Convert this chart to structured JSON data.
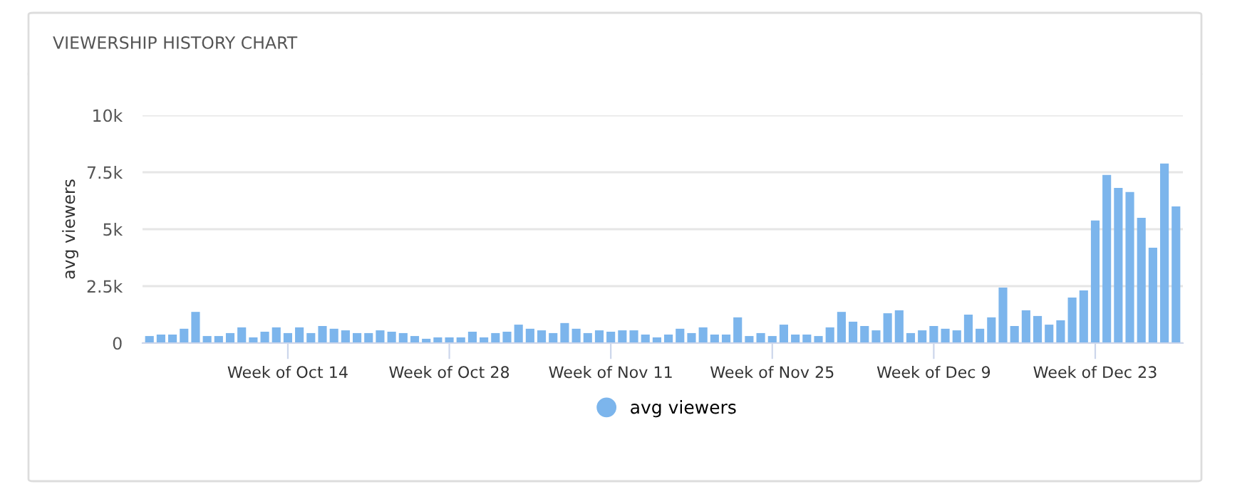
{
  "chart_data": {
    "type": "bar",
    "title": "VIEWERSHIP HISTORY CHART",
    "ylabel": "avg viewers",
    "categories": [
      null,
      null,
      null,
      null,
      null,
      null,
      null,
      null,
      null,
      null,
      null,
      null,
      "Week of Oct 14",
      null,
      null,
      null,
      null,
      null,
      null,
      null,
      null,
      null,
      null,
      null,
      null,
      null,
      "Week of Oct 28",
      null,
      null,
      null,
      null,
      null,
      null,
      null,
      null,
      null,
      null,
      null,
      null,
      null,
      "Week of Nov 11",
      null,
      null,
      null,
      null,
      null,
      null,
      null,
      null,
      null,
      null,
      null,
      null,
      null,
      "Week of Nov 25",
      null,
      null,
      null,
      null,
      null,
      null,
      null,
      null,
      null,
      null,
      null,
      null,
      null,
      "Week of Dec 9",
      null,
      null,
      null,
      null,
      null,
      null,
      null,
      null,
      null,
      null,
      null,
      null,
      null,
      "Week of Dec 23",
      null,
      null,
      null,
      null,
      null,
      null,
      null
    ],
    "series": [
      {
        "name": "avg viewers",
        "color": "#7cb5ec",
        "values": [
          310,
          375,
          375,
          630,
          1370,
          310,
          310,
          440,
          690,
          250,
          500,
          690,
          440,
          690,
          440,
          750,
          630,
          560,
          440,
          440,
          560,
          500,
          440,
          310,
          190,
          250,
          250,
          250,
          500,
          250,
          440,
          500,
          810,
          630,
          560,
          440,
          880,
          630,
          440,
          560,
          500,
          560,
          560,
          375,
          250,
          375,
          630,
          440,
          690,
          375,
          375,
          1130,
          310,
          440,
          310,
          810,
          375,
          375,
          310,
          690,
          1370,
          940,
          750,
          560,
          1310,
          1440,
          440,
          560,
          750,
          630,
          560,
          1250,
          630,
          1130,
          2440,
          750,
          1440,
          1190,
          810,
          1000,
          2000,
          2310,
          5380,
          7380,
          6810,
          6630,
          5500,
          4190,
          7880,
          6000
        ]
      }
    ],
    "ylim": [
      0,
      10000
    ],
    "yticks": [
      0,
      {
        "value": 2500,
        "label": "2.5k"
      },
      {
        "value": 5000,
        "label": "5k"
      },
      {
        "value": 7500,
        "label": "7.5k"
      },
      {
        "value": 10000,
        "label": "10k"
      }
    ],
    "grid": "y",
    "legend": "bottom",
    "marker": "circle"
  }
}
